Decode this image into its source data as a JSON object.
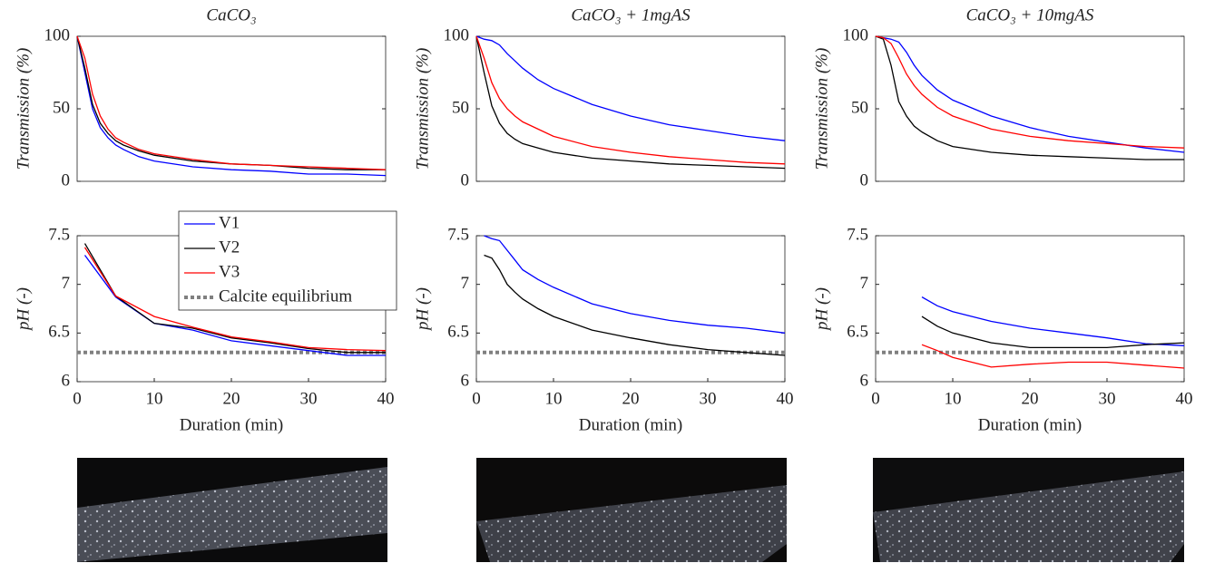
{
  "chart_data": [
    {
      "type": "line",
      "title": "CaCO₃",
      "ylabel": "Transmission (%)",
      "xlim": [
        0,
        40
      ],
      "ylim": [
        0,
        100
      ],
      "yticks": [
        0,
        50,
        100
      ],
      "x": [
        0,
        1,
        2,
        3,
        4,
        5,
        6,
        8,
        10,
        15,
        20,
        25,
        30,
        35,
        40
      ],
      "series": [
        {
          "color": "#0000ff",
          "values": [
            100,
            75,
            50,
            37,
            30,
            25,
            22,
            17,
            14,
            10,
            8,
            7,
            5,
            5,
            4
          ]
        },
        {
          "color": "#000000",
          "values": [
            100,
            78,
            53,
            40,
            33,
            28,
            25,
            21,
            18,
            14,
            12,
            11,
            9,
            8,
            8
          ]
        },
        {
          "color": "#ff0000",
          "values": [
            100,
            85,
            60,
            45,
            36,
            30,
            27,
            22,
            19,
            15,
            12,
            11,
            10,
            9,
            8
          ]
        }
      ]
    },
    {
      "type": "line",
      "title": "CaCO₃ + 1mgAS",
      "ylabel": "Transmission (%)",
      "xlim": [
        0,
        40
      ],
      "ylim": [
        0,
        100
      ],
      "yticks": [
        0,
        50,
        100
      ],
      "x": [
        0,
        1,
        2,
        3,
        4,
        5,
        6,
        8,
        10,
        15,
        20,
        25,
        30,
        35,
        40
      ],
      "series": [
        {
          "color": "#0000ff",
          "values": [
            100,
            98,
            97,
            94,
            88,
            83,
            78,
            70,
            64,
            53,
            45,
            39,
            35,
            31,
            28
          ]
        },
        {
          "color": "#000000",
          "values": [
            100,
            75,
            52,
            40,
            33,
            29,
            26,
            23,
            20,
            16,
            14,
            12,
            11,
            10,
            9
          ]
        },
        {
          "color": "#ff0000",
          "values": [
            100,
            85,
            68,
            57,
            50,
            45,
            41,
            36,
            31,
            24,
            20,
            17,
            15,
            13,
            12
          ]
        }
      ]
    },
    {
      "type": "line",
      "title": "CaCO₃ + 10mgAS",
      "ylabel": "Transmission (%)",
      "xlim": [
        0,
        40
      ],
      "ylim": [
        0,
        100
      ],
      "yticks": [
        0,
        50,
        100
      ],
      "x": [
        0,
        1,
        2,
        3,
        4,
        5,
        6,
        8,
        10,
        15,
        20,
        25,
        30,
        35,
        40
      ],
      "series": [
        {
          "color": "#0000ff",
          "values": [
            100,
            99,
            98,
            96,
            89,
            80,
            73,
            63,
            56,
            45,
            37,
            31,
            27,
            23,
            20
          ]
        },
        {
          "color": "#000000",
          "values": [
            100,
            98,
            80,
            55,
            45,
            38,
            34,
            28,
            24,
            20,
            18,
            17,
            16,
            15,
            15
          ]
        },
        {
          "color": "#ff0000",
          "values": [
            100,
            99,
            95,
            85,
            74,
            66,
            60,
            51,
            45,
            36,
            31,
            28,
            26,
            24,
            23
          ]
        }
      ]
    },
    {
      "type": "line",
      "ylabel": "pH (-)",
      "xlabel": "Duration (min)",
      "xlim": [
        0,
        40
      ],
      "xticks": [
        0,
        10,
        20,
        30,
        40
      ],
      "ylim": [
        6,
        7.5
      ],
      "yticks": [
        6,
        6.5,
        7,
        7.5
      ],
      "legend": "upper right",
      "x": [
        1,
        5,
        10,
        15,
        20,
        25,
        30,
        35,
        40
      ],
      "series": [
        {
          "name": "V1",
          "color": "#0000ff",
          "values": [
            7.3,
            6.87,
            6.6,
            6.53,
            6.42,
            6.37,
            6.32,
            6.27,
            6.27
          ]
        },
        {
          "name": "V2",
          "color": "#000000",
          "values": [
            7.42,
            6.88,
            6.6,
            6.55,
            6.45,
            6.4,
            6.34,
            6.3,
            6.3
          ]
        },
        {
          "name": "V3",
          "color": "#ff0000",
          "values": [
            7.38,
            6.88,
            6.67,
            6.56,
            6.46,
            6.41,
            6.35,
            6.33,
            6.32
          ]
        }
      ],
      "reference": {
        "name": "Calcite equilibrium",
        "value": 6.3,
        "color": "#808080"
      }
    },
    {
      "type": "line",
      "ylabel": "pH (-)",
      "xlabel": "Duration (min)",
      "xlim": [
        0,
        40
      ],
      "xticks": [
        0,
        10,
        20,
        30,
        40
      ],
      "ylim": [
        6,
        7.5
      ],
      "yticks": [
        6,
        6.5,
        7,
        7.5
      ],
      "x": [
        1,
        2,
        3,
        4,
        5,
        6,
        8,
        10,
        15,
        20,
        25,
        30,
        35,
        40
      ],
      "series": [
        {
          "color": "#0000ff",
          "values": [
            7.5,
            7.47,
            7.45,
            7.35,
            7.25,
            7.15,
            7.05,
            6.97,
            6.8,
            6.7,
            6.63,
            6.58,
            6.55,
            6.5
          ]
        },
        {
          "color": "#000000",
          "values": [
            7.3,
            7.27,
            7.15,
            7.0,
            6.92,
            6.85,
            6.75,
            6.67,
            6.53,
            6.45,
            6.38,
            6.33,
            6.3,
            6.27
          ]
        }
      ],
      "reference": {
        "value": 6.3,
        "color": "#808080"
      }
    },
    {
      "type": "line",
      "ylabel": "pH (-)",
      "xlabel": "Duration (min)",
      "xlim": [
        0,
        40
      ],
      "xticks": [
        0,
        10,
        20,
        30,
        40
      ],
      "ylim": [
        6,
        7.5
      ],
      "yticks": [
        6,
        6.5,
        7,
        7.5
      ],
      "x": [
        6,
        8,
        10,
        15,
        20,
        25,
        30,
        35,
        40
      ],
      "series": [
        {
          "color": "#0000ff",
          "values": [
            6.87,
            6.78,
            6.72,
            6.62,
            6.55,
            6.5,
            6.45,
            6.39,
            6.37
          ]
        },
        {
          "color": "#000000",
          "values": [
            6.67,
            6.57,
            6.5,
            6.4,
            6.35,
            6.35,
            6.35,
            6.38,
            6.4
          ]
        },
        {
          "color": "#ff0000",
          "values": [
            6.38,
            6.32,
            6.25,
            6.15,
            6.18,
            6.2,
            6.2,
            6.17,
            6.14
          ]
        }
      ],
      "reference": {
        "value": 6.3,
        "color": "#808080"
      }
    }
  ]
}
